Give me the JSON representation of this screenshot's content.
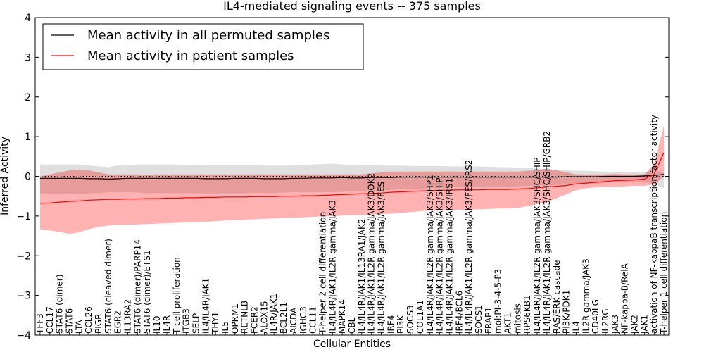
{
  "chart_data": {
    "type": "line",
    "title": "IL4-mediated signaling events -- 375 samples",
    "xlabel": "Cellular Entities",
    "ylabel": "Inferred Activity",
    "ylim": [
      -4,
      4
    ],
    "yticks": [
      -4,
      -3,
      -2,
      -1,
      0,
      1,
      2,
      3,
      4
    ],
    "legend": {
      "placement": "top-left",
      "entries": [
        {
          "label": "Mean activity in all permuted samples",
          "color": "#000000"
        },
        {
          "label": "Mean activity in patient samples",
          "color": "#ff0000"
        }
      ]
    },
    "categories": [
      "TFF3",
      "CCL17",
      "STAT6 (dimer)",
      "STAT6",
      "LTA",
      "CCL26",
      "PIGR",
      "STAT6 (cleaved dimer)",
      "EGR2",
      "IL13RA2",
      "STAT6 (dimer)/PARP14",
      "STAT6 (dimer)/ETS1",
      "IL10",
      "IL4R",
      "T cell proliferation",
      "ITGB3",
      "SELP",
      "IL4/IL4R/JAK1",
      "THY1",
      "IL5",
      "OPRM1",
      "RETNLB",
      "FCER2",
      "ALOX15",
      "IL4R/JAK1",
      "BCL2L1",
      "AICDA",
      "IGHG3",
      "CCL11",
      "T-helper 2 cell differentiation",
      "IL4/IL4R/JAK1/IL2R gamma/JAK3",
      "MAPK14",
      "CBL",
      "IL4/IL4R/JAK1/IL13RA1/JAK2",
      "IL4/IL4R/JAK1/IL2R gamma/JAK3/DOK2",
      "IL4/IL4R/JAK1/IL2R gamma/JAK3/FES",
      "IRF4",
      "PI3K",
      "SOCS3",
      "COL1A1",
      "IL4/IL4R/JAK1/IL2R gamma/JAK3/SHP1",
      "IL4/IL4R/JAK1/IL2R gamma/JAK3/SHIP",
      "IL4/IL4R/JAK1/IL2R gamma/JAK3/IRS1",
      "IRF4/BCL6",
      "IL4/IL4R/JAK1/IL2R gamma/JAK3/FES/IRS2",
      "SOCS1",
      "FRAP1",
      "mol:PI-3-4-5-P3",
      "AKT1",
      "mitosis",
      "RPS6KB1",
      "IL4/IL4R/JAK1/IL2R gamma/JAK3/SHC/SHIP",
      "IL4/IL4R/JAK1/IL2R gamma/JAK3/SHC/SHIP/GRB2",
      "RAS/ERK cascade",
      "PI3K/PDK1",
      "IL4",
      "IL2R gamma/JAK3",
      "CD40LG",
      "IL2RG",
      "JAK3",
      "NF-kappa-B/RelA",
      "JAK2",
      "JAK1",
      "activation of NF-kappaB transcription factor activity",
      "T-helper 1 cell differentiation"
    ],
    "series": [
      {
        "name": "Mean activity in all permuted samples",
        "color": "#000000",
        "values": [
          -0.05,
          -0.05,
          -0.05,
          -0.05,
          -0.05,
          -0.06,
          -0.06,
          -0.07,
          -0.06,
          -0.05,
          -0.05,
          -0.05,
          -0.05,
          -0.05,
          -0.05,
          -0.05,
          -0.05,
          -0.06,
          -0.06,
          -0.06,
          -0.05,
          -0.05,
          -0.05,
          -0.06,
          -0.06,
          -0.06,
          -0.05,
          -0.05,
          -0.04,
          -0.04,
          -0.04,
          -0.03,
          -0.04,
          -0.04,
          -0.03,
          -0.03,
          -0.03,
          -0.02,
          -0.02,
          -0.02,
          -0.02,
          -0.02,
          -0.02,
          -0.02,
          -0.02,
          -0.02,
          -0.02,
          -0.02,
          -0.02,
          -0.02,
          -0.02,
          -0.02,
          -0.02,
          -0.02,
          -0.01,
          -0.01,
          -0.01,
          -0.01,
          0.0,
          0.0,
          0.0,
          0.0,
          0.01,
          0.02,
          0.05
        ],
        "band_upper": [
          0.3,
          0.3,
          0.3,
          0.3,
          0.3,
          0.27,
          0.25,
          0.23,
          0.28,
          0.29,
          0.3,
          0.3,
          0.3,
          0.3,
          0.3,
          0.29,
          0.29,
          0.28,
          0.28,
          0.28,
          0.28,
          0.28,
          0.28,
          0.27,
          0.27,
          0.27,
          0.27,
          0.28,
          0.3,
          0.31,
          0.32,
          0.3,
          0.28,
          0.28,
          0.28,
          0.27,
          0.27,
          0.27,
          0.26,
          0.26,
          0.26,
          0.26,
          0.25,
          0.25,
          0.25,
          0.25,
          0.24,
          0.23,
          0.23,
          0.22,
          0.22,
          0.2,
          0.17,
          0.15,
          0.15,
          0.14,
          0.14,
          0.13,
          0.12,
          0.11,
          0.11,
          0.1,
          0.1,
          0.1,
          0.1
        ],
        "band_lower": [
          -0.45,
          -0.45,
          -0.45,
          -0.45,
          -0.45,
          -0.43,
          -0.42,
          -0.4,
          -0.4,
          -0.4,
          -0.41,
          -0.42,
          -0.42,
          -0.42,
          -0.42,
          -0.42,
          -0.42,
          -0.43,
          -0.43,
          -0.43,
          -0.43,
          -0.42,
          -0.42,
          -0.42,
          -0.42,
          -0.41,
          -0.4,
          -0.4,
          -0.4,
          -0.4,
          -0.4,
          -0.39,
          -0.38,
          -0.37,
          -0.36,
          -0.35,
          -0.34,
          -0.33,
          -0.32,
          -0.31,
          -0.3,
          -0.3,
          -0.29,
          -0.28,
          -0.28,
          -0.27,
          -0.27,
          -0.26,
          -0.26,
          -0.25,
          -0.24,
          -0.24,
          -0.23,
          -0.22,
          -0.2,
          -0.2,
          -0.19,
          -0.18,
          -0.15,
          -0.15,
          -0.14,
          -0.13,
          -0.13,
          -0.2,
          -0.3
        ]
      },
      {
        "name": "Mean activity in patient samples",
        "color": "#ff0000",
        "values": [
          -0.68,
          -0.67,
          -0.65,
          -0.63,
          -0.62,
          -0.6,
          -0.59,
          -0.58,
          -0.58,
          -0.57,
          -0.57,
          -0.56,
          -0.56,
          -0.55,
          -0.55,
          -0.54,
          -0.54,
          -0.53,
          -0.53,
          -0.52,
          -0.52,
          -0.52,
          -0.51,
          -0.51,
          -0.51,
          -0.5,
          -0.5,
          -0.49,
          -0.49,
          -0.48,
          -0.47,
          -0.46,
          -0.45,
          -0.44,
          -0.43,
          -0.42,
          -0.4,
          -0.39,
          -0.38,
          -0.37,
          -0.36,
          -0.35,
          -0.35,
          -0.34,
          -0.34,
          -0.34,
          -0.33,
          -0.33,
          -0.33,
          -0.32,
          -0.31,
          -0.29,
          -0.27,
          -0.25,
          -0.23,
          -0.19,
          -0.17,
          -0.15,
          -0.13,
          -0.11,
          -0.1,
          -0.09,
          -0.07,
          0.05,
          0.6
        ],
        "band_upper": [
          0.0,
          0.05,
          0.1,
          0.15,
          0.17,
          0.15,
          0.1,
          0.05,
          0.05,
          0.05,
          0.05,
          0.04,
          0.05,
          0.05,
          0.05,
          0.05,
          0.05,
          0.05,
          0.05,
          0.05,
          0.05,
          0.05,
          0.05,
          0.05,
          0.05,
          0.05,
          0.05,
          0.05,
          0.05,
          0.05,
          0.05,
          0.05,
          0.05,
          0.05,
          0.08,
          0.1,
          0.12,
          0.12,
          0.12,
          0.12,
          0.12,
          0.12,
          0.12,
          0.12,
          0.12,
          0.12,
          0.12,
          0.12,
          0.12,
          0.12,
          0.14,
          0.15,
          0.2,
          0.15,
          0.1,
          0.05,
          0.05,
          0.05,
          0.05,
          0.06,
          0.05,
          0.05,
          0.05,
          0.3,
          1.28
        ],
        "band_lower": [
          -1.33,
          -1.36,
          -1.4,
          -1.45,
          -1.41,
          -1.33,
          -1.27,
          -1.24,
          -1.23,
          -1.22,
          -1.21,
          -1.2,
          -1.19,
          -1.18,
          -1.17,
          -1.16,
          -1.15,
          -1.14,
          -1.13,
          -1.11,
          -1.1,
          -1.09,
          -1.08,
          -1.07,
          -1.06,
          -1.05,
          -1.04,
          -1.03,
          -1.02,
          -1.01,
          -1.0,
          -0.99,
          -0.98,
          -0.97,
          -0.96,
          -0.95,
          -0.94,
          -0.92,
          -0.9,
          -0.88,
          -0.86,
          -0.86,
          -0.85,
          -0.84,
          -0.84,
          -0.83,
          -0.82,
          -0.81,
          -0.81,
          -0.8,
          -0.75,
          -0.7,
          -0.65,
          -0.55,
          -0.45,
          -0.35,
          -0.3,
          -0.28,
          -0.27,
          -0.26,
          -0.25,
          -0.24,
          -0.24,
          -0.2,
          0.0
        ]
      }
    ]
  }
}
